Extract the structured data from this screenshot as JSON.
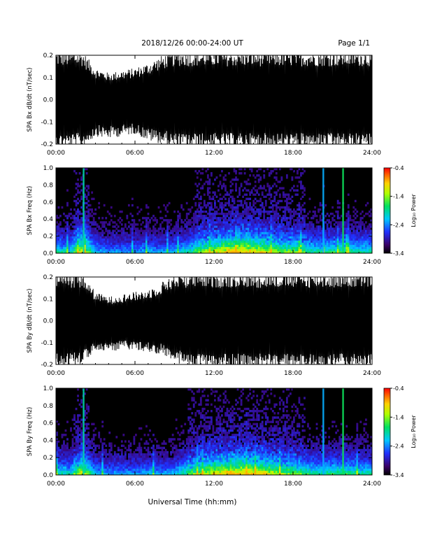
{
  "header": {
    "title": "2018/12/26  00:00-24:00 UT",
    "page": "Page 1/1"
  },
  "xlabel": "Universal Time (hh:mm)",
  "colorbar": {
    "label": "Log₁₀ Power",
    "ticks": [
      "-0.4",
      "-1.4",
      "-2.4",
      "-3.4"
    ],
    "range": [
      -3.4,
      -0.4
    ],
    "colormap": "rainbow (black-purple-blue-cyan-green-yellow-orange-red)"
  },
  "chart_data": [
    {
      "type": "line",
      "ylabel": "SPA Bx dB/dt (nT/sec)",
      "xlim": [
        "00:00",
        "24:00"
      ],
      "ylim": [
        -0.2,
        0.2
      ],
      "xticks": [
        "00:00",
        "06:00",
        "12:00",
        "18:00",
        "24:00"
      ],
      "yticks": [
        "0.2",
        "0.1",
        "0.0",
        "-0.1",
        "-0.2"
      ],
      "series_color": "#000000",
      "envelope_hours": [
        0,
        1,
        2,
        3,
        4,
        5,
        6,
        7,
        8,
        9,
        10,
        11,
        12,
        13,
        14,
        15,
        16,
        17,
        18,
        19,
        20,
        21,
        22,
        23,
        24
      ],
      "envelope_min": [
        -0.2,
        -0.2,
        -0.2,
        -0.15,
        -0.16,
        -0.15,
        -0.14,
        -0.17,
        -0.18,
        -0.2,
        -0.2,
        -0.2,
        -0.2,
        -0.2,
        -0.2,
        -0.2,
        -0.2,
        -0.2,
        -0.2,
        -0.2,
        -0.2,
        -0.2,
        -0.2,
        -0.2,
        -0.2
      ],
      "envelope_max": [
        0.2,
        0.2,
        0.2,
        0.13,
        0.11,
        0.12,
        0.13,
        0.15,
        0.18,
        0.2,
        0.2,
        0.2,
        0.2,
        0.2,
        0.2,
        0.2,
        0.2,
        0.2,
        0.2,
        0.2,
        0.2,
        0.2,
        0.2,
        0.2,
        0.2
      ]
    },
    {
      "type": "heatmap",
      "ylabel": "SPA Bx Freq (Hz)",
      "xlim": [
        "00:00",
        "24:00"
      ],
      "ylim": [
        0.0,
        1.0
      ],
      "xticks": [
        "00:00",
        "06:00",
        "12:00",
        "18:00",
        "24:00"
      ],
      "yticks": [
        "1.0",
        "0.8",
        "0.6",
        "0.4",
        "0.2",
        "0.0"
      ],
      "zlim": [
        -3.4,
        -0.4
      ],
      "hours": [
        0,
        1,
        2,
        3,
        4,
        5,
        6,
        7,
        8,
        9,
        10,
        11,
        12,
        13,
        14,
        15,
        16,
        17,
        18,
        19,
        20,
        21,
        22,
        23
      ],
      "activity": [
        0.45,
        0.4,
        0.7,
        0.35,
        0.3,
        0.3,
        0.3,
        0.35,
        0.3,
        0.35,
        0.45,
        0.55,
        0.65,
        0.75,
        0.8,
        0.75,
        0.65,
        0.6,
        0.55,
        0.5,
        0.45,
        0.5,
        0.5,
        0.45
      ],
      "narrowband_lines": [
        {
          "time_h": 2.1,
          "log_power": -1.6
        },
        {
          "time_h": 20.3,
          "log_power": -2.0
        },
        {
          "time_h": 21.8,
          "log_power": -1.3
        }
      ]
    },
    {
      "type": "line",
      "ylabel": "SPA By dB/dt (nT/sec)",
      "xlim": [
        "00:00",
        "24:00"
      ],
      "ylim": [
        -0.2,
        0.2
      ],
      "xticks": [
        "00:00",
        "06:00",
        "12:00",
        "18:00",
        "24:00"
      ],
      "yticks": [
        "0.2",
        "0.1",
        "0.0",
        "-0.1",
        "-0.2"
      ],
      "series_color": "#000000",
      "envelope_hours": [
        0,
        1,
        2,
        3,
        4,
        5,
        6,
        7,
        8,
        9,
        10,
        11,
        12,
        13,
        14,
        15,
        16,
        17,
        18,
        19,
        20,
        21,
        22,
        23,
        24
      ],
      "envelope_min": [
        -0.2,
        -0.2,
        -0.18,
        -0.12,
        -0.13,
        -0.12,
        -0.12,
        -0.13,
        -0.14,
        -0.17,
        -0.2,
        -0.2,
        -0.2,
        -0.2,
        -0.2,
        -0.2,
        -0.2,
        -0.2,
        -0.2,
        -0.2,
        -0.2,
        -0.2,
        -0.2,
        -0.2,
        -0.2
      ],
      "envelope_max": [
        0.2,
        0.2,
        0.2,
        0.12,
        0.1,
        0.11,
        0.12,
        0.13,
        0.16,
        0.2,
        0.2,
        0.2,
        0.2,
        0.2,
        0.2,
        0.2,
        0.2,
        0.2,
        0.2,
        0.2,
        0.2,
        0.2,
        0.2,
        0.2,
        0.2
      ]
    },
    {
      "type": "heatmap",
      "ylabel": "SPA By Freq (Hz)",
      "xlim": [
        "00:00",
        "24:00"
      ],
      "ylim": [
        0.0,
        1.0
      ],
      "xticks": [
        "00:00",
        "06:00",
        "12:00",
        "18:00",
        "24:00"
      ],
      "yticks": [
        "1.0",
        "0.8",
        "0.6",
        "0.4",
        "0.2",
        "0.0"
      ],
      "zlim": [
        -3.4,
        -0.4
      ],
      "hours": [
        0,
        1,
        2,
        3,
        4,
        5,
        6,
        7,
        8,
        9,
        10,
        11,
        12,
        13,
        14,
        15,
        16,
        17,
        18,
        19,
        20,
        21,
        22,
        23
      ],
      "activity": [
        0.45,
        0.4,
        0.7,
        0.35,
        0.3,
        0.3,
        0.3,
        0.35,
        0.3,
        0.35,
        0.5,
        0.6,
        0.7,
        0.75,
        0.8,
        0.75,
        0.7,
        0.6,
        0.55,
        0.5,
        0.45,
        0.5,
        0.5,
        0.45
      ],
      "narrowband_lines": [
        {
          "time_h": 2.1,
          "log_power": -1.6
        },
        {
          "time_h": 20.3,
          "log_power": -2.0
        },
        {
          "time_h": 21.8,
          "log_power": -1.3
        }
      ]
    }
  ]
}
